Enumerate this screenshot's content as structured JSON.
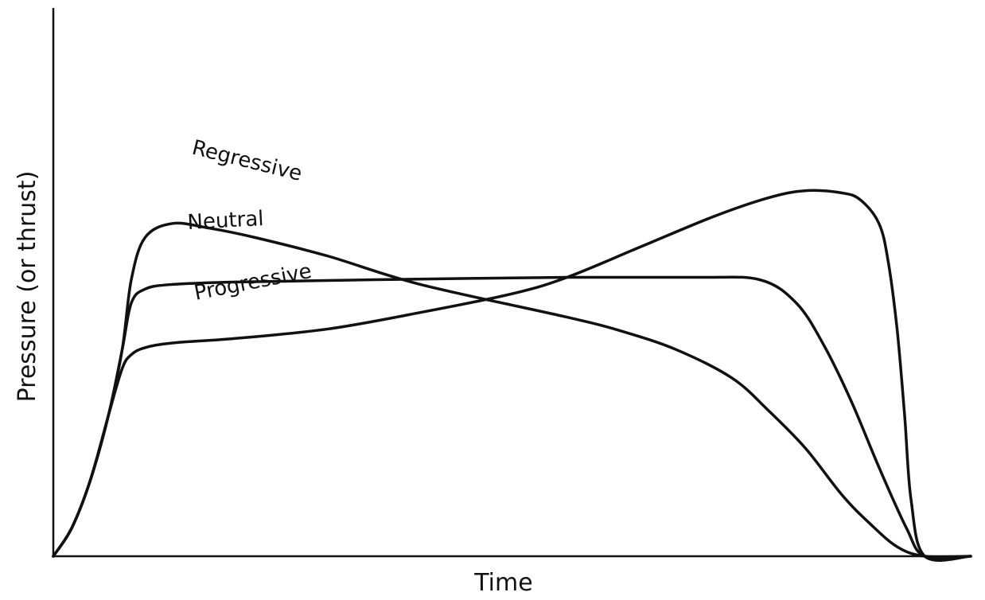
{
  "chart_data": {
    "type": "line",
    "title": "",
    "xlabel": "Time",
    "ylabel": "Pressure (or thrust)",
    "xlim": [
      0,
      100
    ],
    "ylim": [
      0,
      100
    ],
    "grid": false,
    "ticks": false,
    "series": [
      {
        "name": "Regressive",
        "x": [
          0,
          2,
          4,
          6,
          7.5,
          8.5,
          10,
          13,
          17,
          22,
          30,
          40,
          56,
          62,
          68,
          74,
          78,
          82,
          86,
          89,
          92,
          95,
          100
        ],
        "y": [
          0,
          6,
          16,
          30,
          44,
          59,
          68,
          71,
          70,
          68,
          64,
          58,
          51,
          48,
          44,
          38,
          31,
          23,
          13,
          7,
          2,
          0,
          0
        ]
      },
      {
        "name": "Neutral",
        "x": [
          0,
          2,
          4,
          6,
          7.5,
          8.5,
          10,
          13,
          20,
          35,
          56,
          70,
          77,
          81,
          84,
          87,
          90,
          93,
          95,
          100
        ],
        "y": [
          0,
          6,
          16,
          30,
          44,
          54,
          57,
          58,
          58.5,
          59,
          59.5,
          59.5,
          59,
          54,
          45,
          33,
          19,
          6,
          0,
          0
        ]
      },
      {
        "name": "Progressive",
        "x": [
          0,
          2,
          4,
          6,
          7.5,
          8.5,
          10,
          13,
          20,
          30,
          40,
          50,
          56,
          64,
          72,
          78,
          82,
          86,
          88,
          90,
          91,
          92,
          92.8,
          93.5,
          95,
          100
        ],
        "y": [
          0,
          6,
          16,
          30,
          40,
          43,
          44.5,
          45.5,
          46.5,
          48.5,
          52,
          56,
          59.5,
          66,
          72.5,
          76.5,
          78,
          77.5,
          76,
          71,
          63,
          48,
          30,
          12,
          0,
          0
        ]
      }
    ],
    "annotations": [
      {
        "text": "Regressive",
        "series": "Regressive"
      },
      {
        "text": "Neutral",
        "series": "Neutral"
      },
      {
        "text": "Progressive",
        "series": "Progressive"
      }
    ]
  }
}
